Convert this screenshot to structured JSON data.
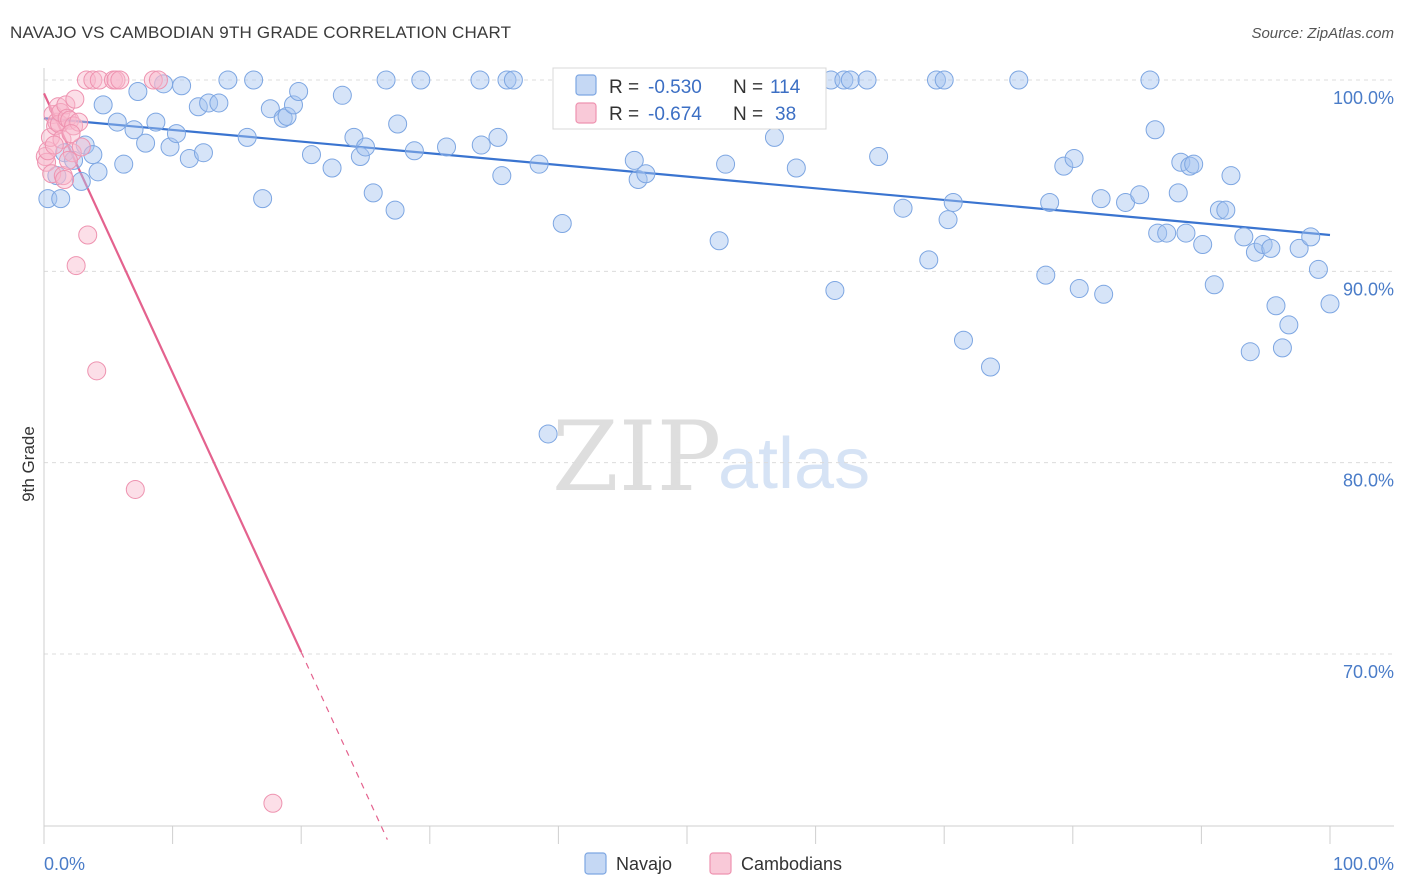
{
  "header": {
    "title": "NAVAJO VS CAMBODIAN 9TH GRADE CORRELATION CHART",
    "source": "Source: ZipAtlas.com"
  },
  "watermark": {
    "zip": "ZIP",
    "atlas": "atlas"
  },
  "stats_box": {
    "r_label": "R =",
    "n_label": "N =",
    "rows": [
      {
        "r": "-0.530",
        "n": "114",
        "color": "#6f9fe0"
      },
      {
        "r": "-0.674",
        "n": "38",
        "color": "#f08aab"
      }
    ]
  },
  "legend": {
    "items": [
      {
        "label": "Navajo",
        "color": "#6f9fe0"
      },
      {
        "label": "Cambodians",
        "color": "#f08aab"
      }
    ]
  },
  "chart_data": {
    "type": "scatter",
    "title": "NAVAJO VS CAMBODIAN 9TH GRADE CORRELATION CHART",
    "xlabel": "",
    "ylabel": "9th Grade",
    "xlim": [
      0,
      100
    ],
    "ylim": [
      60,
      102
    ],
    "x_tick_labels": [
      "0.0%",
      "100.0%"
    ],
    "y_ticks": [
      100,
      90,
      80,
      70
    ],
    "y_tick_labels": [
      "100.0%",
      "90.0%",
      "80.0%",
      "70.0%"
    ],
    "grid": "horizontal dashed",
    "legend_position": "bottom-center",
    "series": [
      {
        "name": "Navajo",
        "color": "#6f9fe0",
        "trend": {
          "x": [
            0,
            100
          ],
          "y": [
            98.0,
            91.9
          ]
        },
        "points": [
          [
            0.3,
            93.8
          ],
          [
            1.0,
            95.0
          ],
          [
            1.3,
            93.8
          ],
          [
            1.6,
            96.2
          ],
          [
            2.3,
            95.8
          ],
          [
            2.9,
            94.7
          ],
          [
            3.2,
            96.6
          ],
          [
            3.8,
            96.1
          ],
          [
            4.2,
            95.2
          ],
          [
            4.6,
            98.7
          ],
          [
            5.7,
            97.8
          ],
          [
            6.2,
            95.6
          ],
          [
            7.0,
            97.4
          ],
          [
            7.3,
            99.4
          ],
          [
            7.9,
            96.7
          ],
          [
            8.7,
            97.8
          ],
          [
            9.3,
            99.8
          ],
          [
            9.8,
            96.5
          ],
          [
            10.3,
            97.2
          ],
          [
            10.7,
            99.7
          ],
          [
            11.3,
            95.9
          ],
          [
            12.0,
            98.6
          ],
          [
            12.4,
            96.2
          ],
          [
            12.8,
            98.8
          ],
          [
            13.6,
            98.8
          ],
          [
            14.3,
            100.0
          ],
          [
            15.8,
            97.0
          ],
          [
            16.3,
            100.0
          ],
          [
            17.0,
            93.8
          ],
          [
            17.6,
            98.5
          ],
          [
            18.6,
            98.0
          ],
          [
            18.9,
            98.1
          ],
          [
            19.4,
            98.7
          ],
          [
            19.8,
            99.4
          ],
          [
            20.8,
            96.1
          ],
          [
            22.4,
            95.4
          ],
          [
            23.2,
            99.2
          ],
          [
            24.1,
            97.0
          ],
          [
            24.6,
            96.0
          ],
          [
            25.0,
            96.5
          ],
          [
            25.6,
            94.1
          ],
          [
            26.6,
            100.0
          ],
          [
            27.3,
            93.2
          ],
          [
            27.5,
            97.7
          ],
          [
            28.8,
            96.3
          ],
          [
            29.3,
            100.0
          ],
          [
            31.3,
            96.5
          ],
          [
            33.9,
            100.0
          ],
          [
            34.0,
            96.6
          ],
          [
            35.3,
            97.0
          ],
          [
            35.6,
            95.0
          ],
          [
            36.0,
            100.0
          ],
          [
            36.5,
            100.0
          ],
          [
            38.5,
            95.6
          ],
          [
            39.2,
            81.5
          ],
          [
            40.3,
            92.5
          ],
          [
            45.9,
            95.8
          ],
          [
            46.2,
            94.8
          ],
          [
            46.8,
            95.1
          ],
          [
            52.5,
            91.6
          ],
          [
            53.0,
            95.6
          ],
          [
            55.5,
            100.0
          ],
          [
            56.8,
            97.0
          ],
          [
            58.5,
            95.4
          ],
          [
            61.2,
            100.0
          ],
          [
            61.5,
            89.0
          ],
          [
            62.2,
            100.0
          ],
          [
            62.7,
            100.0
          ],
          [
            64.0,
            100.0
          ],
          [
            64.9,
            96.0
          ],
          [
            66.8,
            93.3
          ],
          [
            68.8,
            90.6
          ],
          [
            69.4,
            100.0
          ],
          [
            70.0,
            100.0
          ],
          [
            70.3,
            92.7
          ],
          [
            70.7,
            93.6
          ],
          [
            71.5,
            86.4
          ],
          [
            73.6,
            85.0
          ],
          [
            75.8,
            100.0
          ],
          [
            77.9,
            89.8
          ],
          [
            78.2,
            93.6
          ],
          [
            79.3,
            95.5
          ],
          [
            80.1,
            95.9
          ],
          [
            80.5,
            89.1
          ],
          [
            82.2,
            93.8
          ],
          [
            82.4,
            88.8
          ],
          [
            84.1,
            93.6
          ],
          [
            85.2,
            94.0
          ],
          [
            86.0,
            100.0
          ],
          [
            86.4,
            97.4
          ],
          [
            86.6,
            92.0
          ],
          [
            87.3,
            92.0
          ],
          [
            88.2,
            94.1
          ],
          [
            88.4,
            95.7
          ],
          [
            88.8,
            92.0
          ],
          [
            89.1,
            95.5
          ],
          [
            89.4,
            95.6
          ],
          [
            90.1,
            91.4
          ],
          [
            91.0,
            89.3
          ],
          [
            91.4,
            93.2
          ],
          [
            91.9,
            93.2
          ],
          [
            92.3,
            95.0
          ],
          [
            93.3,
            91.8
          ],
          [
            93.8,
            85.8
          ],
          [
            94.2,
            91.0
          ],
          [
            94.8,
            91.4
          ],
          [
            95.4,
            91.2
          ],
          [
            95.8,
            88.2
          ],
          [
            96.3,
            86.0
          ],
          [
            96.8,
            87.2
          ],
          [
            97.6,
            91.2
          ],
          [
            98.5,
            91.8
          ],
          [
            99.1,
            90.1
          ],
          [
            100.0,
            88.3
          ]
        ]
      },
      {
        "name": "Cambodians",
        "color": "#f08aab",
        "trend": {
          "x": [
            0,
            20
          ],
          "y": [
            99.3,
            70.1
          ]
        },
        "trend_extension_dashed": {
          "x": [
            20,
            26.7
          ],
          "y": [
            70.1,
            60.3
          ]
        },
        "points": [
          [
            0.1,
            96.0
          ],
          [
            0.2,
            95.7
          ],
          [
            0.3,
            96.3
          ],
          [
            0.5,
            97.0
          ],
          [
            0.6,
            95.1
          ],
          [
            0.7,
            98.2
          ],
          [
            0.9,
            97.6
          ],
          [
            1.0,
            97.8
          ],
          [
            1.1,
            98.6
          ],
          [
            1.2,
            97.7
          ],
          [
            1.3,
            98.3
          ],
          [
            1.4,
            96.9
          ],
          [
            1.5,
            95.0
          ],
          [
            1.6,
            94.8
          ],
          [
            1.7,
            98.7
          ],
          [
            1.8,
            98.0
          ],
          [
            2.0,
            97.9
          ],
          [
            2.2,
            96.2
          ],
          [
            2.3,
            97.6
          ],
          [
            2.4,
            99.0
          ],
          [
            2.5,
            90.3
          ],
          [
            2.7,
            97.8
          ],
          [
            2.9,
            96.5
          ],
          [
            3.3,
            100.0
          ],
          [
            3.4,
            91.9
          ],
          [
            3.8,
            100.0
          ],
          [
            4.1,
            84.8
          ],
          [
            4.3,
            100.0
          ],
          [
            5.4,
            100.0
          ],
          [
            5.6,
            100.0
          ],
          [
            5.9,
            100.0
          ],
          [
            7.1,
            78.6
          ],
          [
            8.5,
            100.0
          ],
          [
            8.9,
            100.0
          ],
          [
            17.8,
            62.2
          ],
          [
            1.9,
            95.8
          ],
          [
            0.8,
            96.6
          ],
          [
            2.1,
            97.2
          ]
        ]
      }
    ]
  }
}
